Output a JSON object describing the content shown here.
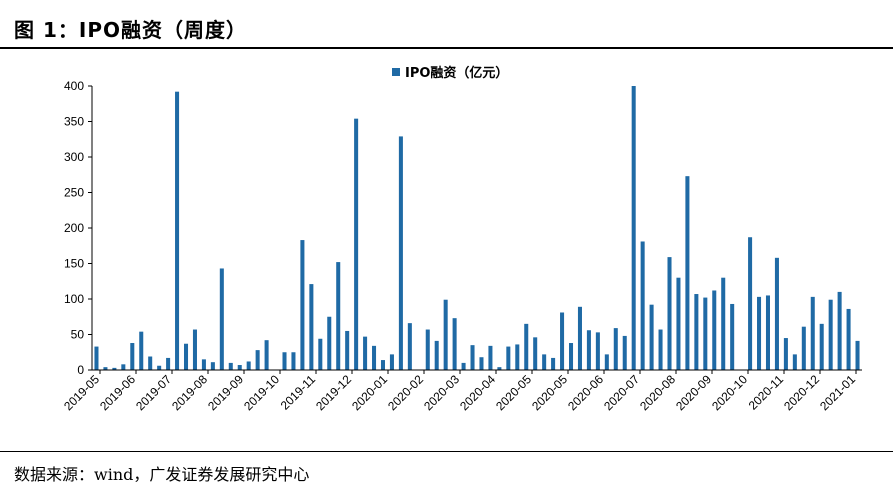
{
  "figure_title": "图 1：IPO融资（周度）",
  "source_note": "数据来源：wind，广发证券发展研究中心",
  "colors": {
    "bar": "#1f6aa5",
    "axis": "#000000"
  },
  "chart_data": {
    "type": "bar",
    "legend": "IPO融资（亿元）",
    "legend_position": "top-center",
    "ylim": [
      0,
      400
    ],
    "yticks": [
      0,
      50,
      100,
      150,
      200,
      250,
      300,
      350,
      400
    ],
    "x_tick_labels": [
      "2019-05",
      "2019-06",
      "2019-07",
      "2019-08",
      "2019-09",
      "2019-10",
      "2019-11",
      "2019-12",
      "2020-01",
      "2020-02",
      "2020-03",
      "2020-04",
      "2020-05",
      "2020-05",
      "2020-06",
      "2020-07",
      "2020-08",
      "2020-09",
      "2020-10",
      "2020-11",
      "2020-12",
      "2021-01"
    ],
    "grid": false,
    "series": [
      {
        "name": "IPO融资（亿元）",
        "values": [
          33,
          4,
          3,
          8,
          38,
          54,
          19,
          6,
          17,
          392,
          37,
          57,
          15,
          11,
          143,
          10,
          7,
          12,
          28,
          42,
          0,
          25,
          25,
          183,
          121,
          44,
          75,
          152,
          55,
          354,
          47,
          34,
          14,
          22,
          329,
          66,
          0,
          57,
          41,
          99,
          73,
          10,
          35,
          18,
          34,
          4,
          33,
          36,
          65,
          46,
          22,
          17,
          81,
          38,
          89,
          56,
          53,
          22,
          59,
          48,
          400,
          181,
          92,
          57,
          159,
          130,
          273,
          107,
          102,
          112,
          130,
          93,
          0,
          187,
          103,
          105,
          158,
          45,
          22,
          61,
          103,
          65,
          99,
          110,
          86,
          41
        ]
      }
    ]
  }
}
